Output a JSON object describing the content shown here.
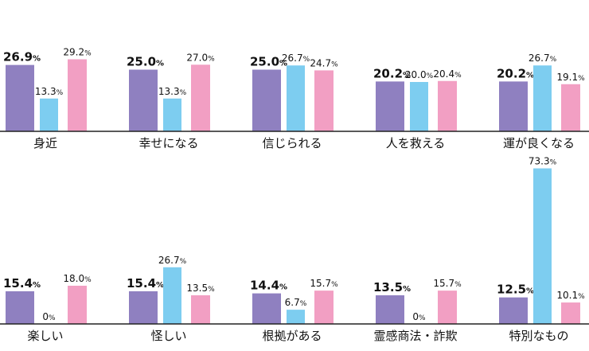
{
  "chart_data": [
    {
      "type": "bar",
      "categories": [
        "身近",
        "幸せになる",
        "信じられる",
        "人を救える",
        "運が良くなる"
      ],
      "ylim": [
        0,
        30
      ],
      "series": [
        {
          "color": "#8f80c0",
          "values": [
            26.9,
            25.0,
            25.0,
            20.2,
            20.2
          ],
          "value_labels": [
            "26.9%",
            "25.0%",
            "25.0%",
            "20.2%",
            "20.2%"
          ]
        },
        {
          "color": "#7dcdf0",
          "values": [
            13.3,
            13.3,
            26.7,
            20.0,
            26.7
          ],
          "value_labels": [
            "13.3%",
            "13.3%",
            "26.7%",
            "20.0%",
            "26.7%"
          ]
        },
        {
          "color": "#f29fc3",
          "values": [
            29.2,
            27.0,
            24.7,
            20.4,
            19.1
          ],
          "value_labels": [
            "29.2%",
            "27.0%",
            "24.7%",
            "20.4%",
            "19.1%"
          ]
        }
      ]
    },
    {
      "type": "bar",
      "categories": [
        "楽しい",
        "怪しい",
        "根拠がある",
        "霊感商法・詐欺",
        "特別なもの"
      ],
      "ylim": [
        0,
        75
      ],
      "series": [
        {
          "color": "#8f80c0",
          "values": [
            15.4,
            15.4,
            14.4,
            13.5,
            12.5
          ],
          "value_labels": [
            "15.4%",
            "15.4%",
            "14.4%",
            "13.5%",
            "12.5%"
          ]
        },
        {
          "color": "#7dcdf0",
          "values": [
            0,
            26.7,
            6.7,
            0,
            73.3
          ],
          "value_labels": [
            "0%",
            "26.7%",
            "6.7%",
            "0%",
            "73.3%"
          ]
        },
        {
          "color": "#f29fc3",
          "values": [
            18.0,
            13.5,
            15.7,
            15.7,
            10.1
          ],
          "value_labels": [
            "18.0%",
            "13.5%",
            "15.7%",
            "15.7%",
            "10.1%"
          ]
        }
      ]
    }
  ]
}
